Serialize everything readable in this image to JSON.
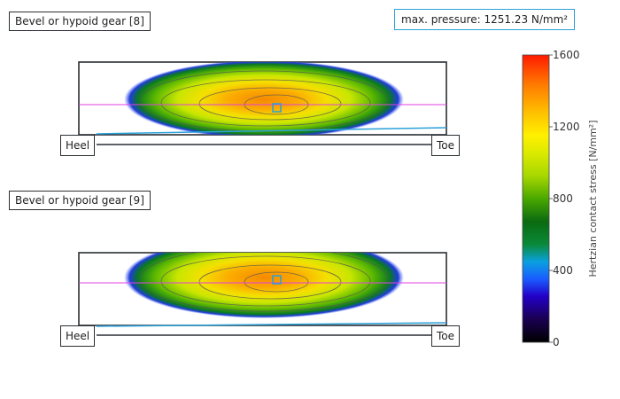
{
  "gear_panels": [
    {
      "title": "Bevel or hypoid gear [8]",
      "heel_label": "Heel",
      "toe_label": "Toe"
    },
    {
      "title": "Bevel or hypoid gear [9]",
      "heel_label": "Heel",
      "toe_label": "Toe"
    }
  ],
  "max_pressure": "max. pressure: 1251.23 N/mm²",
  "colorbar": {
    "title": "Hertzian contact stress [N/mm²]",
    "ticks": [
      "1600",
      "1200",
      "800",
      "400",
      "0"
    ],
    "min": 0,
    "max": 1600
  },
  "colors": {
    "frame": "#2a2f33",
    "centerline": "#e040e0",
    "rootline": "#2aa0d8"
  }
}
